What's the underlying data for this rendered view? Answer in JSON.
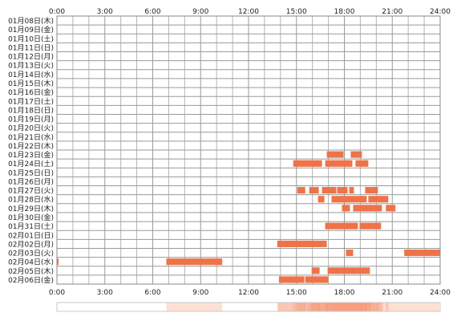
{
  "chart_data": {
    "type": "timeline",
    "x_ticks": [
      "0:00",
      "3:00",
      "6:00",
      "9:00",
      "12:00",
      "15:00",
      "18:00",
      "21:00",
      "24:00"
    ],
    "xlim": [
      0,
      24
    ],
    "grid": true,
    "rows": [
      {
        "label": "01月08日(木)",
        "segments": []
      },
      {
        "label": "01月09日(金)",
        "segments": []
      },
      {
        "label": "01月10日(土)",
        "segments": []
      },
      {
        "label": "01月11日(日)",
        "segments": []
      },
      {
        "label": "01月12日(月)",
        "segments": []
      },
      {
        "label": "01月13日(火)",
        "segments": []
      },
      {
        "label": "01月14日(水)",
        "segments": []
      },
      {
        "label": "01月15日(木)",
        "segments": []
      },
      {
        "label": "01月16日(金)",
        "segments": []
      },
      {
        "label": "01月17日(土)",
        "segments": []
      },
      {
        "label": "01月18日(日)",
        "segments": []
      },
      {
        "label": "01月19日(月)",
        "segments": []
      },
      {
        "label": "01月20日(火)",
        "segments": []
      },
      {
        "label": "01月21日(水)",
        "segments": []
      },
      {
        "label": "01月22日(木)",
        "segments": []
      },
      {
        "label": "01月23日(金)",
        "segments": [
          [
            16.9,
            17.95
          ],
          [
            18.4,
            19.1
          ]
        ]
      },
      {
        "label": "01月24日(土)",
        "segments": [
          [
            14.8,
            16.6
          ],
          [
            16.8,
            18.5
          ],
          [
            18.7,
            19.5
          ]
        ]
      },
      {
        "label": "01月25日(日)",
        "segments": []
      },
      {
        "label": "01月26日(月)",
        "segments": []
      },
      {
        "label": "01月27日(火)",
        "segments": [
          [
            15.05,
            15.55
          ],
          [
            15.8,
            16.4
          ],
          [
            16.6,
            17.5
          ],
          [
            17.55,
            18.2
          ],
          [
            18.3,
            18.6
          ],
          [
            19.3,
            20.1
          ]
        ]
      },
      {
        "label": "01月28日(水)",
        "segments": [
          [
            16.35,
            16.75
          ],
          [
            17.2,
            19.4
          ],
          [
            19.5,
            20.75
          ]
        ]
      },
      {
        "label": "01月29日(木)",
        "segments": [
          [
            17.85,
            18.35
          ],
          [
            18.55,
            20.35
          ],
          [
            20.6,
            21.2
          ]
        ]
      },
      {
        "label": "01月30日(金)",
        "segments": []
      },
      {
        "label": "01月31日(土)",
        "segments": [
          [
            16.8,
            18.85
          ],
          [
            18.95,
            20.3
          ]
        ]
      },
      {
        "label": "02月01日(日)",
        "segments": []
      },
      {
        "label": "02月02日(月)",
        "segments": [
          [
            13.8,
            16.9
          ]
        ]
      },
      {
        "label": "02月03日(火)",
        "segments": [
          [
            18.1,
            18.55
          ],
          [
            21.75,
            24.0
          ]
        ]
      },
      {
        "label": "02月04日(水)",
        "segments": [
          [
            0.0,
            0.1
          ],
          [
            6.85,
            10.35
          ]
        ]
      },
      {
        "label": "02月05日(木)",
        "segments": [
          [
            15.95,
            16.45
          ],
          [
            16.95,
            19.6
          ]
        ]
      },
      {
        "label": "02月06日(金)",
        "segments": [
          [
            13.9,
            15.5
          ],
          [
            15.55,
            17.0
          ]
        ]
      }
    ],
    "density_bar": [
      [
        6.85,
        10.35
      ],
      [
        13.8,
        24.0
      ]
    ]
  }
}
